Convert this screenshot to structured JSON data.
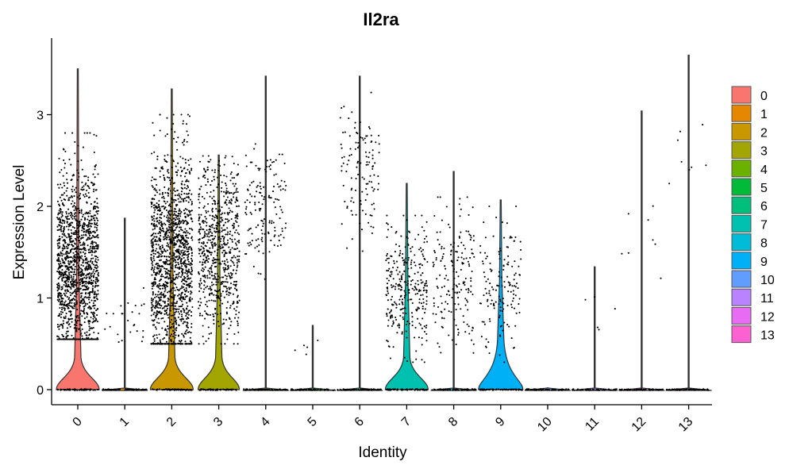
{
  "chart_data": {
    "type": "violin",
    "title": "Il2ra",
    "xlabel": "Identity",
    "ylabel": "Expression Level",
    "ylim": [
      0,
      3.6
    ],
    "yticks": [
      0,
      1,
      2,
      3
    ],
    "categories": [
      "0",
      "1",
      "2",
      "3",
      "4",
      "5",
      "6",
      "7",
      "8",
      "9",
      "10",
      "11",
      "12",
      "13"
    ],
    "max_expression": [
      3.5,
      1.87,
      3.28,
      2.56,
      3.42,
      0.7,
      3.42,
      2.25,
      2.38,
      2.07,
      0.02,
      1.34,
      3.04,
      3.65
    ],
    "expressing_cells": [
      2000,
      25,
      1500,
      700,
      150,
      5,
      120,
      300,
      180,
      150,
      0,
      5,
      8,
      8
    ],
    "expressing_range": [
      [
        0.55,
        2.8
      ],
      [
        0.4,
        1.2
      ],
      [
        0.5,
        3.0
      ],
      [
        0.5,
        2.55
      ],
      [
        1.2,
        2.9
      ],
      [
        0.3,
        0.7
      ],
      [
        1.3,
        3.4
      ],
      [
        0.3,
        1.9
      ],
      [
        0.4,
        2.1
      ],
      [
        0.3,
        2.0
      ],
      [
        0,
        0
      ],
      [
        0.4,
        1.3
      ],
      [
        0.5,
        3.0
      ],
      [
        1.8,
        3.6
      ]
    ],
    "colors": [
      "#F8766D",
      "#E58700",
      "#C99800",
      "#A3A500",
      "#6BB100",
      "#00BA38",
      "#00BF7D",
      "#00C0AF",
      "#00BCD8",
      "#00B0F6",
      "#619CFF",
      "#B983FF",
      "#E76BF3",
      "#FD61D1"
    ],
    "legend": {
      "position": "right",
      "entries": [
        "0",
        "1",
        "2",
        "3",
        "4",
        "5",
        "6",
        "7",
        "8",
        "9",
        "10",
        "11",
        "12",
        "13"
      ]
    },
    "grid": false
  }
}
